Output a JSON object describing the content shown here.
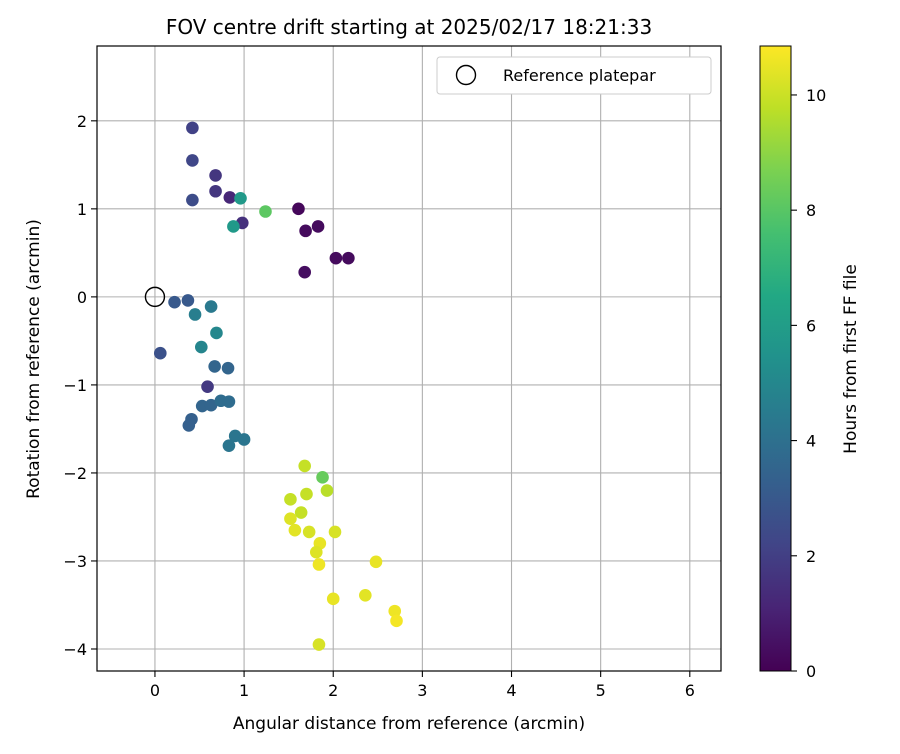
{
  "chart_data": {
    "type": "scatter",
    "title": "FOV centre drift starting at 2025/02/17 18:21:33",
    "xlabel": "Angular distance from reference (arcmin)",
    "ylabel": "Rotation from reference (arcmin)",
    "xlim": [
      -0.65,
      6.35
    ],
    "ylim": [
      -4.25,
      2.85
    ],
    "xticks": [
      0,
      1,
      2,
      3,
      4,
      5,
      6
    ],
    "yticks": [
      -4,
      -3,
      -2,
      -1,
      0,
      1,
      2
    ],
    "grid": true,
    "legend": {
      "position": "top-right",
      "label": "Reference platepar"
    },
    "reference_point": {
      "x": 0,
      "y": 0
    },
    "colorbar": {
      "label": "Hours from first FF file",
      "colormap": "viridis",
      "min": 0,
      "max": 10.85,
      "ticks": [
        0,
        2,
        4,
        6,
        8,
        10
      ]
    },
    "points": [
      {
        "x": 1.61,
        "y": 1.0,
        "hours": 0.2
      },
      {
        "x": 1.69,
        "y": 0.75,
        "hours": 0.3
      },
      {
        "x": 1.83,
        "y": 0.8,
        "hours": 0.3
      },
      {
        "x": 1.68,
        "y": 0.28,
        "hours": 0.4
      },
      {
        "x": 2.03,
        "y": 0.44,
        "hours": 0.3
      },
      {
        "x": 2.17,
        "y": 0.44,
        "hours": 0.3
      },
      {
        "x": 0.84,
        "y": 1.13,
        "hours": 1.2
      },
      {
        "x": 0.98,
        "y": 0.84,
        "hours": 1.5
      },
      {
        "x": 0.68,
        "y": 1.38,
        "hours": 1.7
      },
      {
        "x": 0.68,
        "y": 1.2,
        "hours": 1.7
      },
      {
        "x": 0.42,
        "y": 1.92,
        "hours": 2.1
      },
      {
        "x": 0.42,
        "y": 1.55,
        "hours": 2.3
      },
      {
        "x": 0.42,
        "y": 1.1,
        "hours": 2.5
      },
      {
        "x": 0.59,
        "y": -1.02,
        "hours": 1.8
      },
      {
        "x": 0.06,
        "y": -0.64,
        "hours": 2.7
      },
      {
        "x": 0.22,
        "y": -0.06,
        "hours": 3.0
      },
      {
        "x": 0.37,
        "y": -0.04,
        "hours": 3.0
      },
      {
        "x": 0.45,
        "y": -0.2,
        "hours": 4.6
      },
      {
        "x": 0.63,
        "y": -0.11,
        "hours": 4.4
      },
      {
        "x": 0.69,
        "y": -0.41,
        "hours": 5.0
      },
      {
        "x": 0.52,
        "y": -0.57,
        "hours": 4.9
      },
      {
        "x": 0.67,
        "y": -0.79,
        "hours": 3.5
      },
      {
        "x": 0.82,
        "y": -0.81,
        "hours": 3.5
      },
      {
        "x": 0.53,
        "y": -1.24,
        "hours": 3.5
      },
      {
        "x": 0.63,
        "y": -1.23,
        "hours": 3.5
      },
      {
        "x": 0.74,
        "y": -1.18,
        "hours": 3.8
      },
      {
        "x": 0.83,
        "y": -1.19,
        "hours": 3.8
      },
      {
        "x": 0.41,
        "y": -1.39,
        "hours": 3.3
      },
      {
        "x": 0.38,
        "y": -1.46,
        "hours": 3.3
      },
      {
        "x": 0.9,
        "y": -1.58,
        "hours": 4.2
      },
      {
        "x": 1.0,
        "y": -1.62,
        "hours": 4.2
      },
      {
        "x": 0.83,
        "y": -1.69,
        "hours": 4.2
      },
      {
        "x": 0.96,
        "y": 1.12,
        "hours": 5.8
      },
      {
        "x": 0.88,
        "y": 0.8,
        "hours": 5.8
      },
      {
        "x": 1.24,
        "y": 0.97,
        "hours": 8.1
      },
      {
        "x": 1.68,
        "y": -1.92,
        "hours": 9.9
      },
      {
        "x": 1.88,
        "y": -2.05,
        "hours": 8.3
      },
      {
        "x": 1.93,
        "y": -2.2,
        "hours": 9.7
      },
      {
        "x": 1.52,
        "y": -2.3,
        "hours": 9.9
      },
      {
        "x": 1.7,
        "y": -2.24,
        "hours": 9.9
      },
      {
        "x": 1.64,
        "y": -2.45,
        "hours": 9.9
      },
      {
        "x": 1.52,
        "y": -2.52,
        "hours": 10.3
      },
      {
        "x": 1.57,
        "y": -2.65,
        "hours": 10.4
      },
      {
        "x": 1.73,
        "y": -2.67,
        "hours": 10.2
      },
      {
        "x": 2.02,
        "y": -2.67,
        "hours": 10.2
      },
      {
        "x": 1.85,
        "y": -2.8,
        "hours": 10.5
      },
      {
        "x": 1.81,
        "y": -2.9,
        "hours": 10.3
      },
      {
        "x": 1.84,
        "y": -3.04,
        "hours": 10.6
      },
      {
        "x": 2.48,
        "y": -3.01,
        "hours": 10.5
      },
      {
        "x": 2.0,
        "y": -3.43,
        "hours": 10.5
      },
      {
        "x": 2.36,
        "y": -3.39,
        "hours": 10.4
      },
      {
        "x": 2.69,
        "y": -3.57,
        "hours": 10.6
      },
      {
        "x": 2.71,
        "y": -3.68,
        "hours": 10.7
      },
      {
        "x": 1.84,
        "y": -3.95,
        "hours": 10.2
      }
    ]
  }
}
